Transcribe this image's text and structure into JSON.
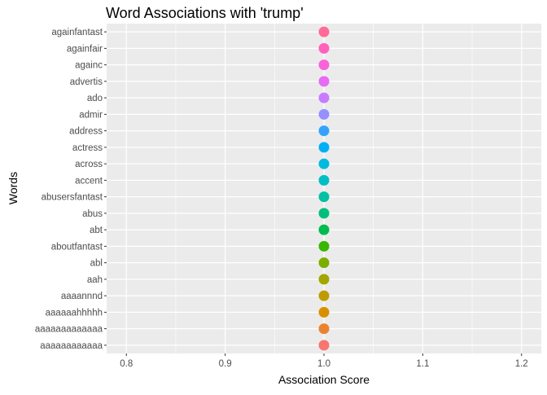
{
  "chart_data": {
    "type": "scatter",
    "title": "Word Associations with 'trump'",
    "xlabel": "Association Score",
    "ylabel": "Words",
    "xlim": [
      0.78,
      1.22
    ],
    "x_ticks": [
      "0.8",
      "0.9",
      "1.0",
      "1.1",
      "1.2"
    ],
    "x_tick_values": [
      0.8,
      0.9,
      1.0,
      1.1,
      1.2
    ],
    "grid": true,
    "legend": "none",
    "categories": [
      "aaaaaaaaaaaa",
      "aaaaaaaaaaaaa",
      "aaaaaahhhhh",
      "aaaannnd",
      "aah",
      "abl",
      "aboutfantast",
      "abt",
      "abus",
      "abusersfantast",
      "accent",
      "across",
      "actress",
      "address",
      "admir",
      "ado",
      "advertis",
      "againc",
      "againfair",
      "againfantast"
    ],
    "values": [
      1,
      1,
      1,
      1,
      1,
      1,
      1,
      1,
      1,
      1,
      1,
      1,
      1,
      1,
      1,
      1,
      1,
      1,
      1,
      1
    ],
    "point_colors": [
      "#F8766D",
      "#EA8331",
      "#D89000",
      "#C09B00",
      "#A3A500",
      "#7CAE00",
      "#39B600",
      "#00BB4E",
      "#00BF7D",
      "#00C1A3",
      "#00BFC4",
      "#00BAE0",
      "#00B0F6",
      "#35A2FF",
      "#9590FF",
      "#C77CFF",
      "#E76BF3",
      "#FA62DB",
      "#FF62BC",
      "#FF6A98"
    ],
    "panel_background": "#EBEBEB",
    "grid_color": "#FFFFFF"
  }
}
